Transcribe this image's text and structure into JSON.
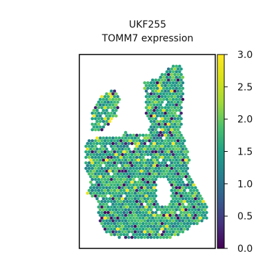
{
  "chart_data": {
    "type": "spatial-scatter",
    "title_lines": [
      "UKF255",
      "TOMM7 expression"
    ],
    "colormap": "viridis",
    "colorbar": {
      "range": [
        0.0,
        3.0
      ],
      "ticks": [
        "0.0",
        "0.5",
        "1.0",
        "1.5",
        "2.0",
        "2.5",
        "3.0"
      ]
    },
    "value_range": [
      0.0,
      3.0
    ],
    "typical_value": 1.6
  }
}
